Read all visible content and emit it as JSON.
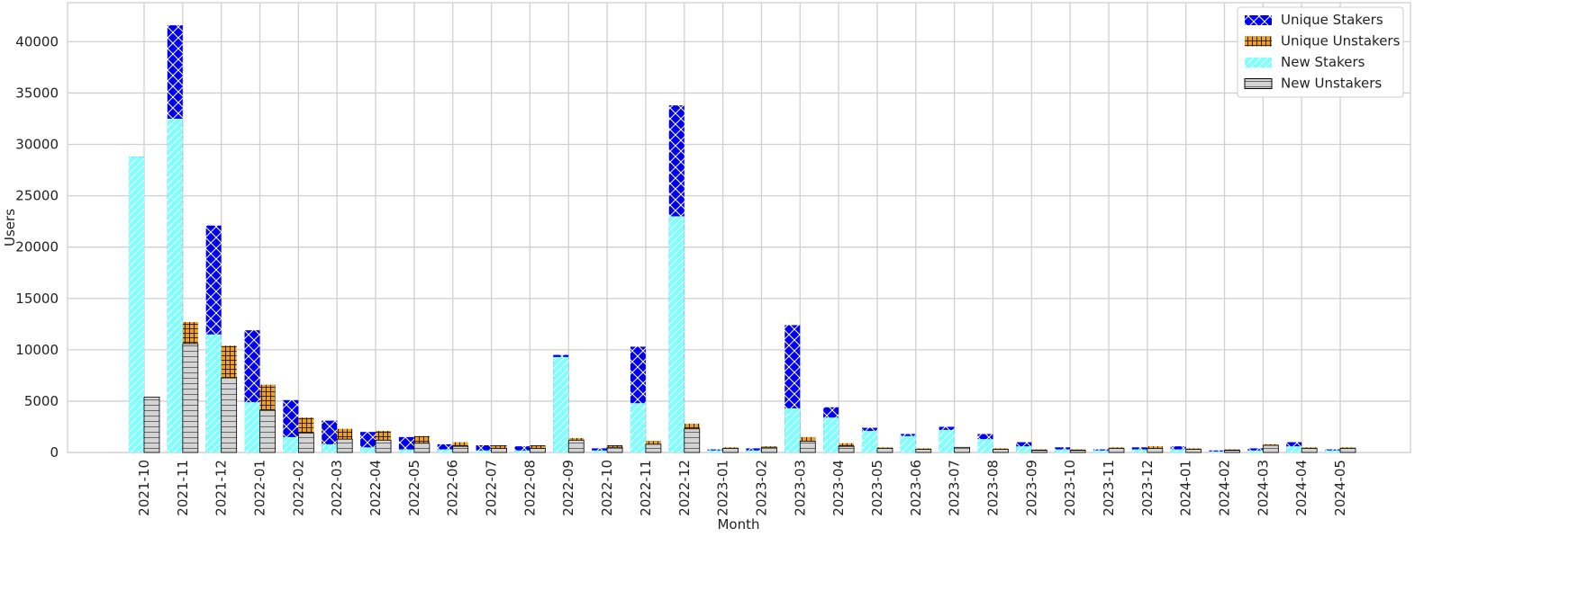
{
  "chart_data": {
    "type": "bar",
    "x_label": "Month",
    "y_label": "Users",
    "categories": [
      "2021-10",
      "2021-11",
      "2021-12",
      "2022-01",
      "2022-02",
      "2022-03",
      "2022-04",
      "2022-05",
      "2022-06",
      "2022-07",
      "2022-08",
      "2022-09",
      "2022-10",
      "2022-11",
      "2022-12",
      "2023-01",
      "2023-02",
      "2023-03",
      "2023-04",
      "2023-05",
      "2023-06",
      "2023-07",
      "2023-08",
      "2023-09",
      "2023-10",
      "2023-11",
      "2023-12",
      "2024-01",
      "2024-02",
      "2024-03",
      "2024-04",
      "2024-05"
    ],
    "series": [
      {
        "name": "Unique Stakers",
        "color": "#0000ee",
        "values": [
          28800,
          41600,
          22100,
          11900,
          5100,
          3100,
          2000,
          1500,
          800,
          700,
          600,
          9500,
          400,
          10300,
          33800,
          300,
          400,
          12400,
          4400,
          2400,
          1800,
          2500,
          1800,
          1000,
          500,
          300,
          500,
          600,
          200,
          400,
          1000,
          300
        ]
      },
      {
        "name": "Unique Unstakers",
        "color": "#f0a020",
        "values": [
          5400,
          12700,
          10400,
          6600,
          3400,
          2300,
          2100,
          1600,
          1000,
          700,
          700,
          1400,
          700,
          1100,
          2800,
          500,
          600,
          1500,
          900,
          500,
          400,
          500,
          400,
          300,
          300,
          500,
          600,
          400,
          300,
          800,
          500,
          500
        ]
      },
      {
        "name": "New Stakers",
        "color": "#80ffff",
        "values": [
          28800,
          32500,
          11500,
          4900,
          1500,
          800,
          500,
          300,
          300,
          200,
          200,
          9300,
          200,
          4800,
          23000,
          200,
          200,
          4300,
          3400,
          2100,
          1600,
          2200,
          1300,
          600,
          300,
          200,
          300,
          300,
          100,
          200,
          600,
          200
        ]
      },
      {
        "name": "New Unstakers",
        "color": "#d3d3d3",
        "values": [
          5400,
          10600,
          7300,
          4100,
          1900,
          1300,
          1200,
          900,
          600,
          400,
          400,
          1200,
          500,
          800,
          2300,
          400,
          500,
          1100,
          600,
          400,
          300,
          500,
          300,
          200,
          200,
          400,
          400,
          300,
          200,
          700,
          400,
          400
        ]
      }
    ],
    "ylim": [
      0,
      43800
    ],
    "yticks": [
      0,
      5000,
      10000,
      15000,
      20000,
      25000,
      30000,
      35000,
      40000
    ],
    "grid": true,
    "legend": "upper right"
  }
}
